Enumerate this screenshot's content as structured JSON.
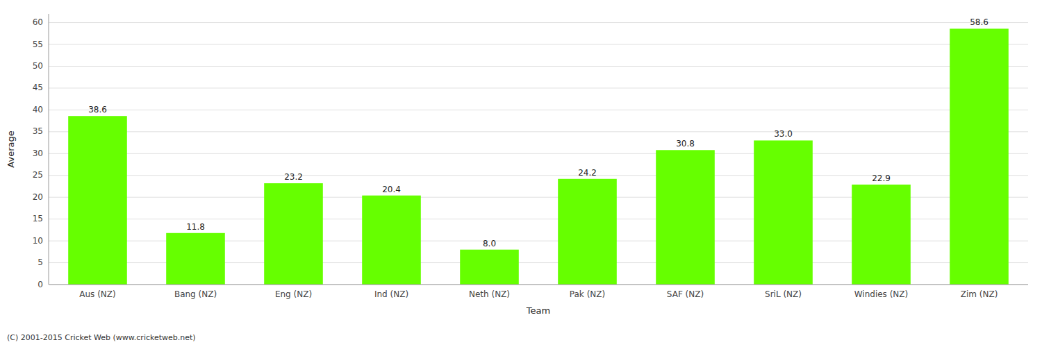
{
  "chart_data": {
    "type": "bar",
    "categories": [
      "Aus (NZ)",
      "Bang (NZ)",
      "Eng (NZ)",
      "Ind (NZ)",
      "Neth (NZ)",
      "Pak (NZ)",
      "SAF (NZ)",
      "SriL (NZ)",
      "Windies (NZ)",
      "Zim (NZ)"
    ],
    "values": [
      38.6,
      11.8,
      23.2,
      20.4,
      8.0,
      24.2,
      30.8,
      33.0,
      22.9,
      58.6
    ],
    "value_labels": [
      "38.6",
      "11.8",
      "23.2",
      "20.4",
      "8.0",
      "24.2",
      "30.8",
      "33.0",
      "22.9",
      "58.6"
    ],
    "color": "#66ff00",
    "xlabel": "Team",
    "ylabel": "Average",
    "ylim": [
      0,
      62
    ],
    "yticks": [
      0,
      5,
      10,
      15,
      20,
      25,
      30,
      35,
      40,
      45,
      50,
      55,
      60
    ],
    "grid": true,
    "data_labels": true,
    "annotations": [
      "(C) 2001-2015 Cricket Web (www.cricketweb.net)"
    ]
  }
}
